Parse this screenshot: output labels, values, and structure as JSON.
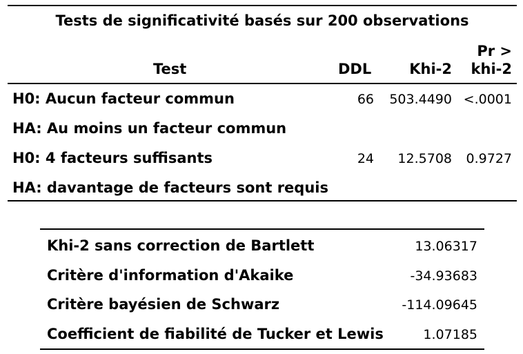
{
  "significance_table": {
    "title": "Tests de significativité basés sur 200 observations",
    "headers": {
      "test": "Test",
      "ddl": "DDL",
      "khi2": "Khi-2",
      "pr_line1": "Pr >",
      "pr_line2": "khi-2"
    },
    "rows": [
      {
        "test": "H0: Aucun facteur commun",
        "ddl": "66",
        "khi2": "503.4490",
        "pr": "<.0001"
      },
      {
        "test": "HA: Au moins un facteur commun",
        "ddl": "",
        "khi2": "",
        "pr": ""
      },
      {
        "test": "H0: 4 facteurs suffisants",
        "ddl": "24",
        "khi2": "12.5708",
        "pr": "0.9727"
      },
      {
        "test": "HA: davantage de facteurs sont requis",
        "ddl": "",
        "khi2": "",
        "pr": ""
      }
    ]
  },
  "fit_table": {
    "rows": [
      {
        "label": "Khi-2 sans correction de Bartlett",
        "value": "13.06317"
      },
      {
        "label": "Critère d'information d'Akaike",
        "value": "-34.93683"
      },
      {
        "label": "Critère bayésien de Schwarz",
        "value": "-114.09645"
      },
      {
        "label": "Coefficient de fiabilité de Tucker et Lewis",
        "value": "1.07185"
      }
    ]
  }
}
